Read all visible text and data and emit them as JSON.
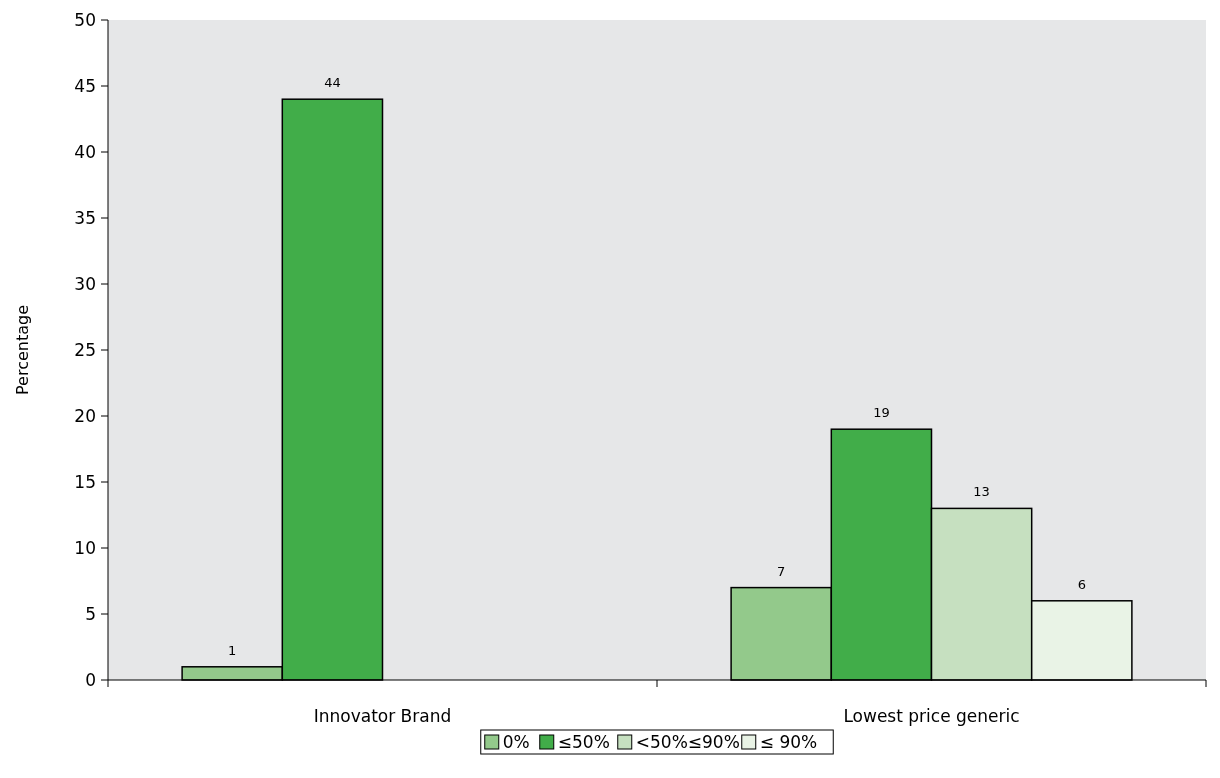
{
  "chart_data": {
    "type": "bar",
    "ylabel": "Percentage",
    "categories": [
      "Innovator Brand",
      "Lowest price generic"
    ],
    "series": [
      {
        "name": "0%",
        "color": "#93c98b",
        "values": [
          1,
          7
        ]
      },
      {
        "name": "≤50%",
        "color": "#41ad49",
        "values": [
          44,
          19
        ]
      },
      {
        "name": "<50%≤90%",
        "color": "#c6e0c0",
        "values": [
          null,
          13
        ]
      },
      {
        "name": "≤ 90%",
        "color": "#e9f3e6",
        "values": [
          null,
          6
        ]
      }
    ],
    "ylim": [
      0,
      50
    ],
    "yticks": [
      0,
      5,
      10,
      15,
      20,
      25,
      30,
      35,
      40,
      45,
      50
    ],
    "data_labels": true,
    "grid": false,
    "legend": "bottom"
  }
}
